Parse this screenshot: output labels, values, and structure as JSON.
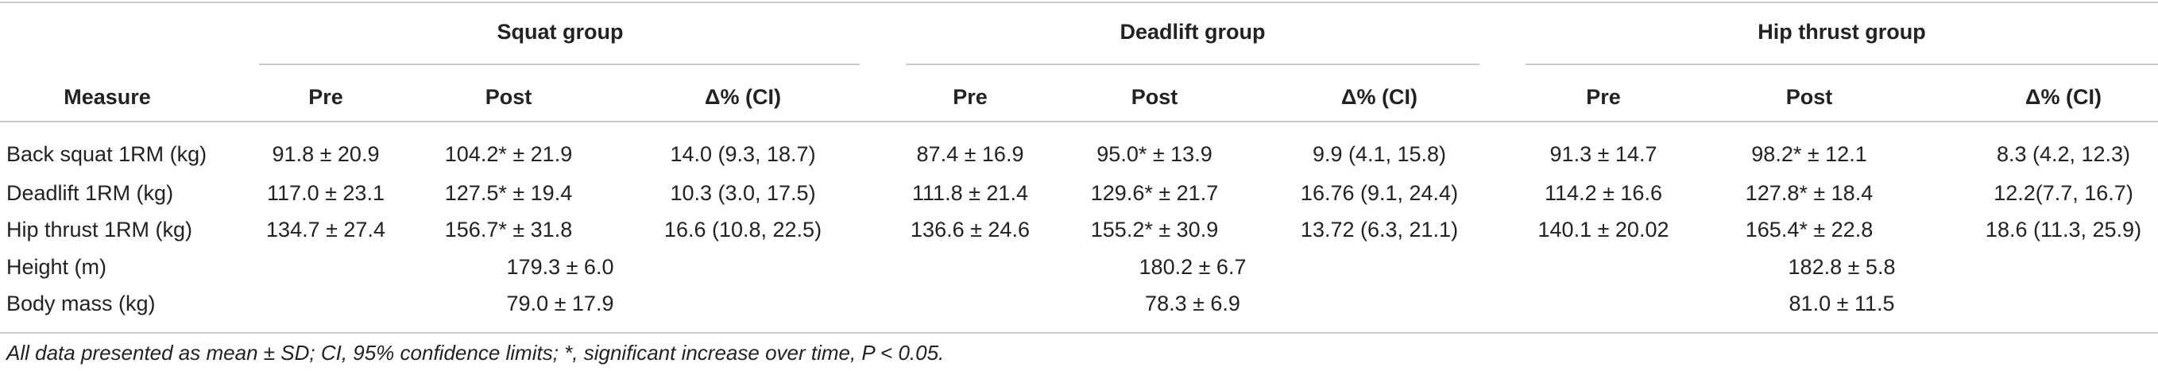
{
  "table": {
    "groups": [
      "Squat group",
      "Deadlift group",
      "Hip thrust group"
    ],
    "measure_header": "Measure",
    "col_headers": [
      "Pre",
      "Post",
      "Δ% (CI)"
    ],
    "rows": [
      {
        "label": "Back squat 1RM (kg)",
        "cells": [
          "91.8 ± 20.9",
          "104.2* ± 21.9",
          "14.0 (9.3, 18.7)",
          "87.4 ± 16.9",
          "95.0* ± 13.9",
          "9.9 (4.1, 15.8)",
          "91.3 ± 14.7",
          "98.2* ± 12.1",
          "8.3 (4.2, 12.3)"
        ]
      },
      {
        "label": "Deadlift 1RM (kg)",
        "cells": [
          "117.0 ± 23.1",
          "127.5* ± 19.4",
          "10.3 (3.0, 17.5)",
          "111.8 ± 21.4",
          "129.6* ± 21.7",
          "16.76 (9.1, 24.4)",
          "114.2 ± 16.6",
          "127.8* ± 18.4",
          "12.2(7.7, 16.7)"
        ]
      },
      {
        "label": "Hip thrust 1RM (kg)",
        "cells": [
          "134.7 ± 27.4",
          "156.7* ± 31.8",
          "16.6 (10.8, 22.5)",
          "136.6 ± 24.6",
          "155.2* ± 30.9",
          "13.72 (6.3, 21.1)",
          "140.1 ± 20.02",
          "165.4* ± 22.8",
          "18.6 (11.3, 25.9)"
        ]
      }
    ],
    "summary_rows": [
      {
        "label": "Height (m)",
        "values": [
          "179.3 ± 6.0",
          "180.2 ± 6.7",
          "182.8 ± 5.8"
        ]
      },
      {
        "label": "Body mass (kg)",
        "values": [
          "79.0 ± 17.9",
          "78.3 ± 6.9",
          "81.0 ± 11.5"
        ]
      }
    ],
    "footnote": "All data presented as mean ± SD; CI, 95% confidence limits; *, significant increase over time, P < 0.05."
  }
}
